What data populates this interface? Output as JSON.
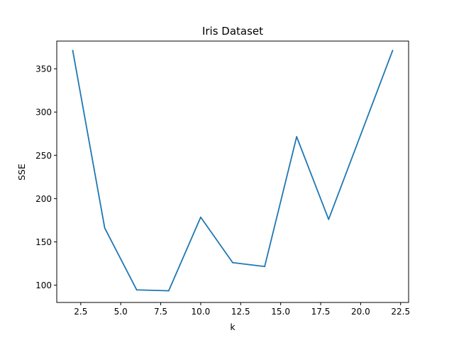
{
  "chart_data": {
    "type": "line",
    "title": "Iris Dataset",
    "xlabel": "k",
    "ylabel": "SSE",
    "xlim": [
      1.0,
      23.0
    ],
    "ylim": [
      80,
      382
    ],
    "xticks": [
      2.5,
      5.0,
      7.5,
      10.0,
      12.5,
      15.0,
      17.5,
      20.0,
      22.5
    ],
    "xtick_labels": [
      "2.5",
      "5.0",
      "7.5",
      "10.0",
      "12.5",
      "15.0",
      "17.5",
      "20.0",
      "22.5"
    ],
    "yticks": [
      100,
      150,
      200,
      250,
      300,
      350
    ],
    "ytick_labels": [
      "100",
      "150",
      "200",
      "250",
      "300",
      "350"
    ],
    "grid": false,
    "series": [
      {
        "color": "#1f77b4",
        "x": [
          2,
          4,
          6,
          8,
          10,
          12,
          14,
          16,
          18,
          20,
          22
        ],
        "y": [
          371,
          166,
          94.5,
          93.5,
          178.5,
          126,
          121.5,
          271.5,
          176,
          273.5,
          371
        ]
      }
    ]
  }
}
